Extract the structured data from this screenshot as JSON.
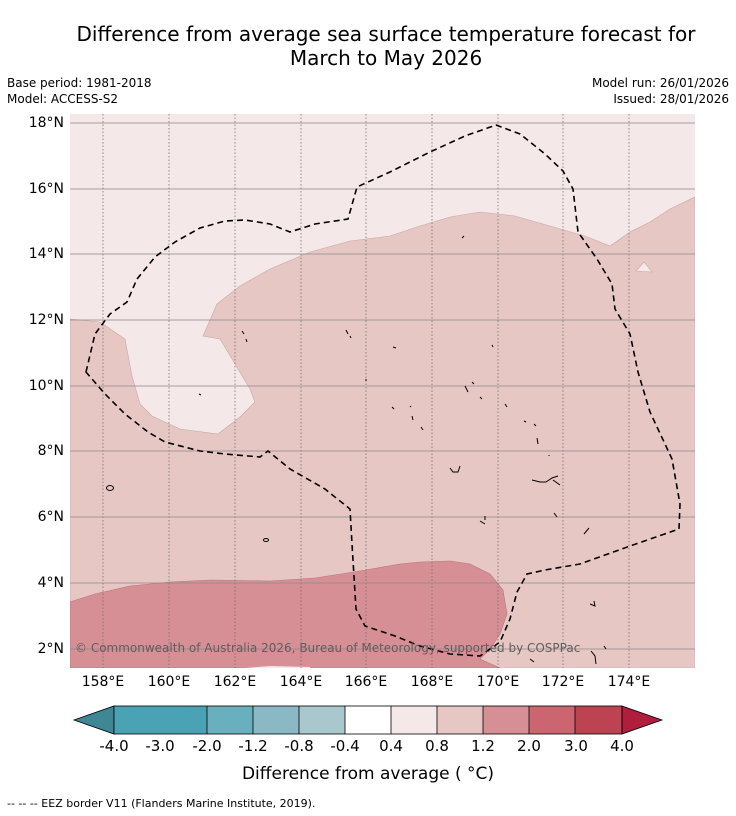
{
  "title_line1": "Difference from average sea surface temperature forecast for",
  "title_line2": "March to May 2026",
  "base_period": "Base period: 1981-2018",
  "model": "Model: ACCESS-S2",
  "model_run": "Model run: 26/01/2026",
  "issued": "Issued: 28/01/2026",
  "copyright": "© Commonwealth of Australia 2026, Bureau of Meteorology, supported by COSPPac",
  "lat_labels": [
    "18°N",
    "16°N",
    "14°N",
    "12°N",
    "10°N",
    "8°N",
    "6°N",
    "4°N",
    "2°N"
  ],
  "lon_labels": [
    "158°E",
    "160°E",
    "162°E",
    "164°E",
    "166°E",
    "168°E",
    "170°E",
    "172°E",
    "174°E"
  ],
  "colorbar": {
    "ticks": [
      "-4.0",
      "-3.0",
      "-2.0",
      "-1.2",
      "-0.8",
      "-0.4",
      "0.4",
      "0.8",
      "1.2",
      "2.0",
      "3.0",
      "4.0"
    ],
    "colors": [
      "#3f8795",
      "#4aa3b4",
      "#6aafbe",
      "#8ab8c4",
      "#a8c8cd",
      "#c8dadd",
      "#ffffff",
      "#f4e8e8",
      "#e6c7c4",
      "#d78f96",
      "#cb6670",
      "#be4352",
      "#b01e3e"
    ],
    "title": "Difference from average ($^\\circ$C)",
    "title_display": "Difference from average ( °C)"
  },
  "footnote": "--  --  -- EEZ border V11 (Flanders Marine Institute, 2019).",
  "map": {
    "lon_range": [
      157,
      176
    ],
    "lat_range": [
      1.4,
      18.2
    ],
    "fill_colors": {
      "low": "#f4e8e8",
      "mid": "#e6c7c4",
      "high": "#d78f96"
    }
  }
}
